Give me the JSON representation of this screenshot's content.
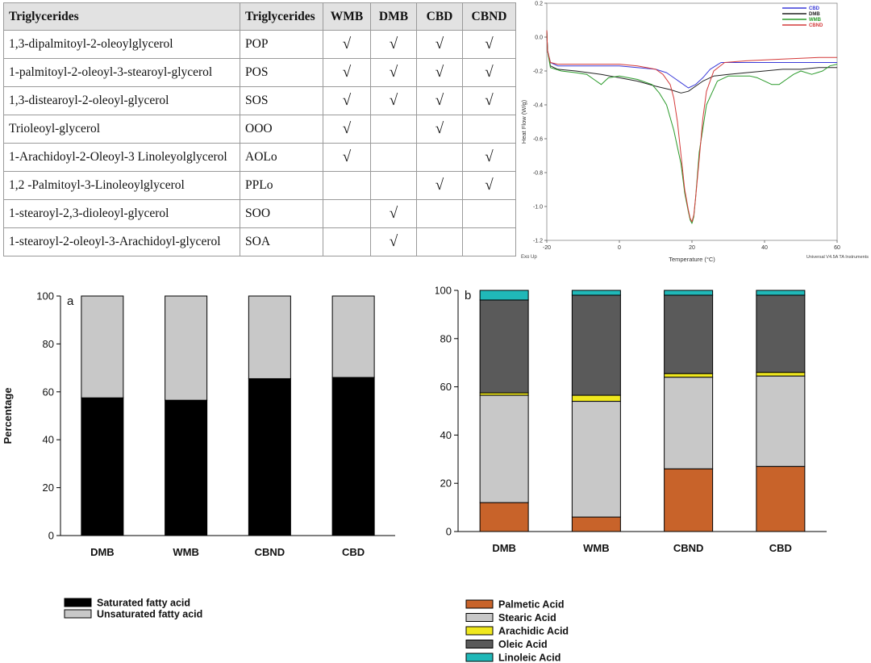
{
  "table": {
    "headers": [
      "Triglycerides",
      "Triglycerides",
      "WMB",
      "DMB",
      "CBD",
      "CBND"
    ],
    "check_mark": "√",
    "rows": [
      {
        "name": "1,3-dipalmitoyl-2-oleoylglycerol",
        "abbr": "POP",
        "checks": [
          true,
          true,
          true,
          true
        ]
      },
      {
        "name": "1-palmitoyl-2-oleoyl-3-stearoyl-glycerol",
        "abbr": "POS",
        "checks": [
          true,
          true,
          true,
          true
        ]
      },
      {
        "name": "1,3-distearoyl-2-oleoyl-glycerol",
        "abbr": "SOS",
        "checks": [
          true,
          true,
          true,
          true
        ]
      },
      {
        "name": "Trioleoyl-glycerol",
        "abbr": "OOO",
        "checks": [
          true,
          false,
          true,
          false
        ]
      },
      {
        "name": "1-Arachidoyl-2-Oleoyl-3 Linoleyolglycerol",
        "abbr": "AOLo",
        "checks": [
          true,
          false,
          false,
          true
        ]
      },
      {
        "name": "1,2 -Palmitoyl-3-Linoleoylglycerol",
        "abbr": "PPLo",
        "checks": [
          false,
          false,
          true,
          true
        ]
      },
      {
        "name": "1-stearoyl-2,3-dioleoyl-glycerol",
        "abbr": "SOO",
        "checks": [
          false,
          true,
          false,
          false
        ]
      },
      {
        "name": "1-stearoyl-2-oleoyl-3-Arachidoyl-glycerol",
        "abbr": "SOA",
        "checks": [
          false,
          true,
          false,
          false
        ]
      }
    ]
  },
  "chart_data": [
    {
      "type": "line",
      "xlabel": "Temperature (°C)",
      "ylabel": "Heat Flow (W/g)",
      "xlim": [
        -20,
        60
      ],
      "ylim": [
        -1.2,
        0.2
      ],
      "xticks": [
        -20,
        0,
        20,
        40,
        60
      ],
      "yticks": [
        0.2,
        0.0,
        -0.2,
        -0.4,
        -0.6,
        -0.8,
        -1.0,
        -1.2
      ],
      "corner_left": "Exo Up",
      "corner_right": "Universal V4.5A TA Instruments",
      "legend_position": "top-right",
      "series": [
        {
          "name": "CBD",
          "color": "#3a3ad8",
          "x": [
            -20,
            -19.8,
            -19,
            -17,
            -14,
            -10,
            0,
            10,
            13,
            15,
            17,
            19,
            21,
            23,
            25,
            28,
            35,
            45,
            55,
            60
          ],
          "y": [
            0.04,
            -0.08,
            -0.15,
            -0.17,
            -0.17,
            -0.17,
            -0.17,
            -0.19,
            -0.21,
            -0.24,
            -0.27,
            -0.3,
            -0.28,
            -0.24,
            -0.19,
            -0.15,
            -0.15,
            -0.15,
            -0.15,
            -0.15
          ]
        },
        {
          "name": "DMB",
          "color": "#222222",
          "x": [
            -20,
            -19.8,
            -19,
            -17,
            -12,
            -5,
            0,
            5,
            10,
            14,
            17,
            19,
            21,
            23,
            26,
            30,
            35,
            40,
            45,
            50,
            55,
            60
          ],
          "y": [
            0.04,
            -0.08,
            -0.17,
            -0.19,
            -0.2,
            -0.22,
            -0.24,
            -0.26,
            -0.29,
            -0.31,
            -0.33,
            -0.32,
            -0.29,
            -0.26,
            -0.23,
            -0.22,
            -0.21,
            -0.2,
            -0.19,
            -0.19,
            -0.18,
            -0.18
          ]
        },
        {
          "name": "WMB",
          "color": "#2a9a2a",
          "x": [
            -20,
            -19.8,
            -19,
            -16,
            -12,
            -9,
            -7,
            -5,
            -3,
            0,
            5,
            9,
            11,
            13,
            15,
            17,
            18,
            19,
            19.5,
            20,
            20.5,
            21,
            22,
            24,
            27,
            30,
            33,
            36,
            38,
            40,
            42,
            44,
            46,
            48,
            50,
            53,
            56,
            58,
            60
          ],
          "y": [
            0.04,
            -0.08,
            -0.18,
            -0.2,
            -0.21,
            -0.22,
            -0.25,
            -0.28,
            -0.24,
            -0.23,
            -0.25,
            -0.28,
            -0.33,
            -0.4,
            -0.55,
            -0.75,
            -0.92,
            -1.03,
            -1.08,
            -1.1,
            -1.06,
            -0.95,
            -0.68,
            -0.4,
            -0.26,
            -0.23,
            -0.23,
            -0.23,
            -0.24,
            -0.26,
            -0.28,
            -0.28,
            -0.25,
            -0.22,
            -0.2,
            -0.22,
            -0.2,
            -0.17,
            -0.16
          ]
        },
        {
          "name": "CBND",
          "color": "#d43a3a",
          "x": [
            -20,
            -19.8,
            -19,
            -17,
            -12,
            -5,
            0,
            5,
            10,
            12,
            14,
            15,
            16,
            17,
            18,
            19,
            19.5,
            20,
            20.5,
            21,
            22,
            23,
            24,
            26,
            29,
            35,
            45,
            55,
            60
          ],
          "y": [
            0.04,
            -0.08,
            -0.15,
            -0.16,
            -0.16,
            -0.16,
            -0.16,
            -0.17,
            -0.19,
            -0.22,
            -0.28,
            -0.36,
            -0.5,
            -0.7,
            -0.9,
            -1.02,
            -1.07,
            -1.09,
            -1.05,
            -0.95,
            -0.72,
            -0.48,
            -0.32,
            -0.2,
            -0.15,
            -0.14,
            -0.13,
            -0.12,
            -0.12
          ]
        }
      ]
    },
    {
      "type": "bar",
      "stacked": true,
      "panel_label": "a",
      "ylabel": "Percentage",
      "ylim": [
        0,
        100
      ],
      "yticks": [
        0,
        20,
        40,
        60,
        80,
        100
      ],
      "categories": [
        "DMB",
        "WMB",
        "CBND",
        "CBD"
      ],
      "legend_position": "bottom-left",
      "series": [
        {
          "name": "Saturated fatty acid",
          "color": "#000000",
          "values": [
            57.5,
            56.5,
            65.5,
            66.0
          ]
        },
        {
          "name": "Unsaturated fatty acid",
          "color": "#c8c8c8",
          "values": [
            42.5,
            43.5,
            34.5,
            34.0
          ]
        }
      ]
    },
    {
      "type": "bar",
      "stacked": true,
      "panel_label": "b",
      "ylabel": "Percentage",
      "ylim": [
        0,
        100
      ],
      "yticks": [
        0,
        20,
        40,
        60,
        80,
        100
      ],
      "categories": [
        "DMB",
        "WMB",
        "CBND",
        "CBD"
      ],
      "legend_position": "bottom-left",
      "series": [
        {
          "name": "Palmetic Acid",
          "color": "#c8632a",
          "values": [
            12,
            6,
            26,
            27
          ]
        },
        {
          "name": "Stearic Acid",
          "color": "#c8c8c8",
          "values": [
            44.5,
            48,
            38,
            37.5
          ]
        },
        {
          "name": "Arachidic Acid",
          "color": "#f0e81e",
          "values": [
            1,
            2.5,
            1.5,
            1.5
          ]
        },
        {
          "name": "Oleic Acid",
          "color": "#5a5a5a",
          "values": [
            38.5,
            41.5,
            32.5,
            32
          ]
        },
        {
          "name": "Linoleic Acid",
          "color": "#20b8b8",
          "values": [
            4,
            2,
            2,
            2
          ]
        }
      ]
    }
  ]
}
